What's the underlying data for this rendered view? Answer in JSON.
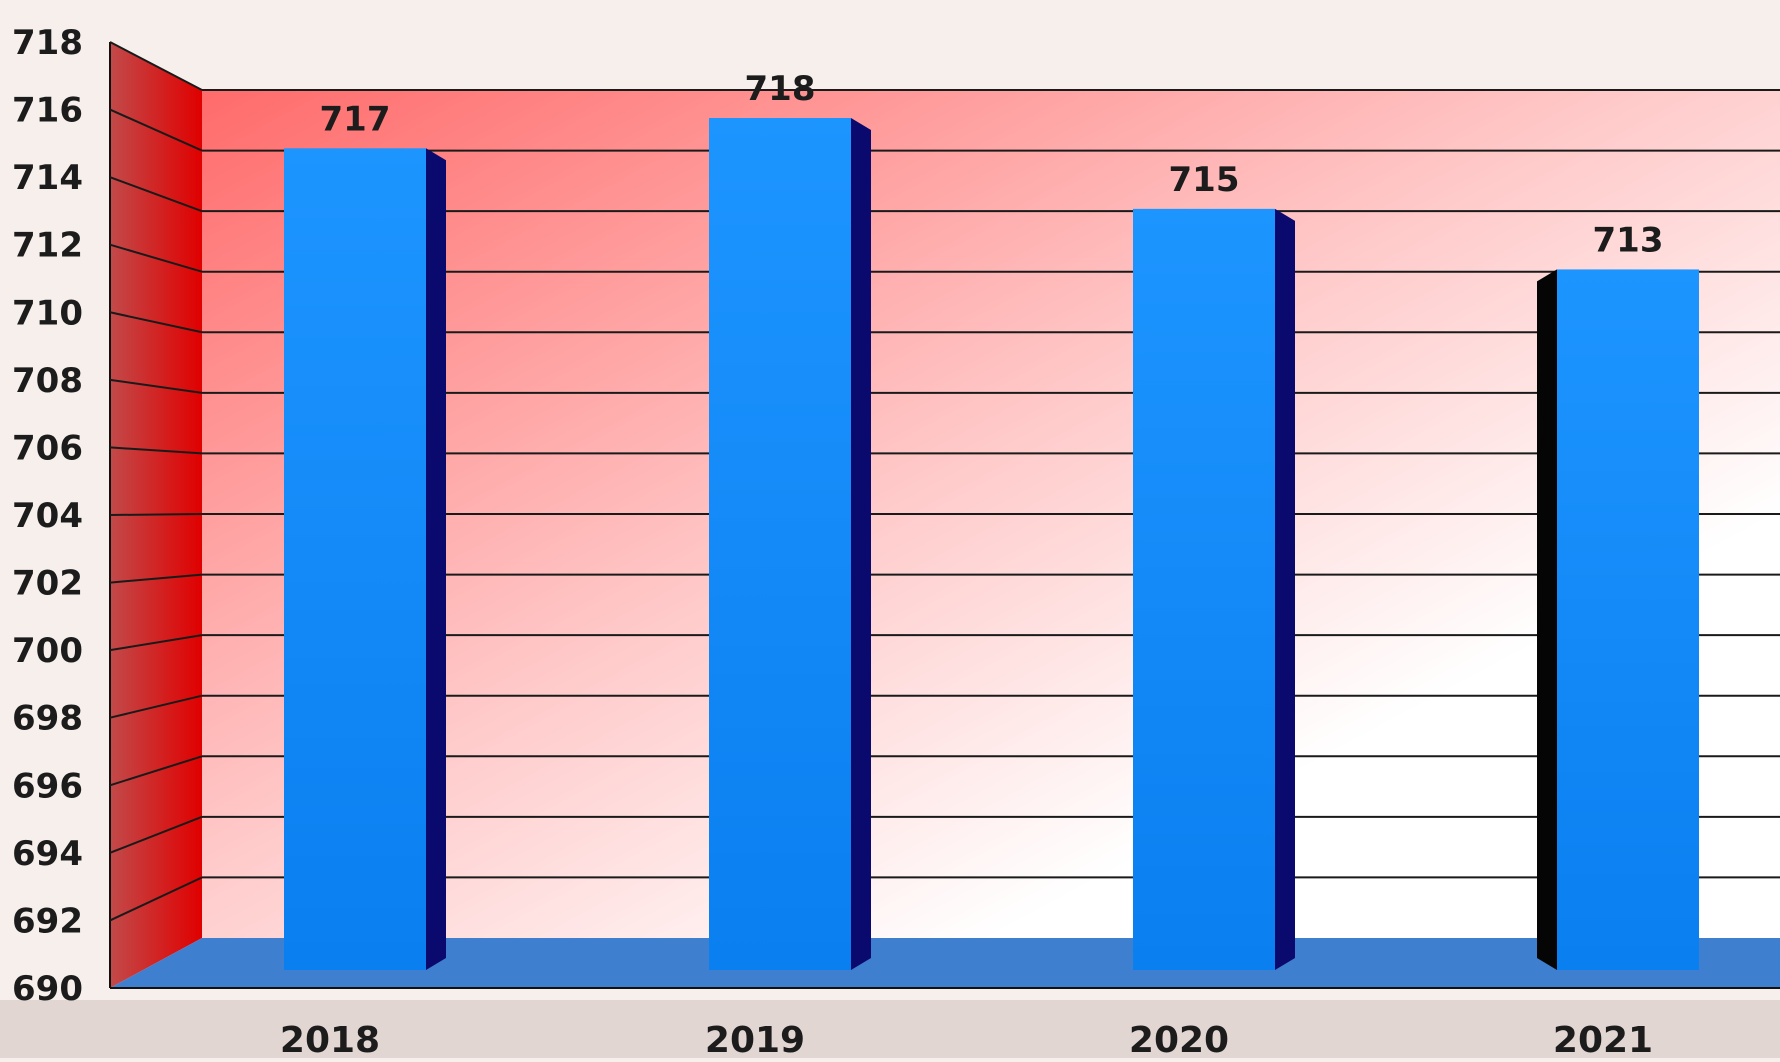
{
  "chart_data": {
    "type": "bar",
    "categories": [
      "2018",
      "2019",
      "2020",
      "2021"
    ],
    "values": [
      717,
      718,
      715,
      713
    ],
    "data_labels": [
      "717",
      "718",
      "715",
      "713"
    ],
    "ylim": [
      690,
      718
    ],
    "yticks": [
      "690",
      "692",
      "694",
      "696",
      "698",
      "700",
      "702",
      "704",
      "706",
      "708",
      "710",
      "712",
      "714",
      "716",
      "718"
    ],
    "title": "",
    "xlabel": "",
    "ylabel": "",
    "grid": true,
    "style": "3d",
    "colors": {
      "bar": "#1a8cff",
      "bar_side": "#0a0a6e",
      "floor": "#3f7fcf",
      "wall_red": "#ff6b6b",
      "side_wall": "#cc1515"
    }
  }
}
